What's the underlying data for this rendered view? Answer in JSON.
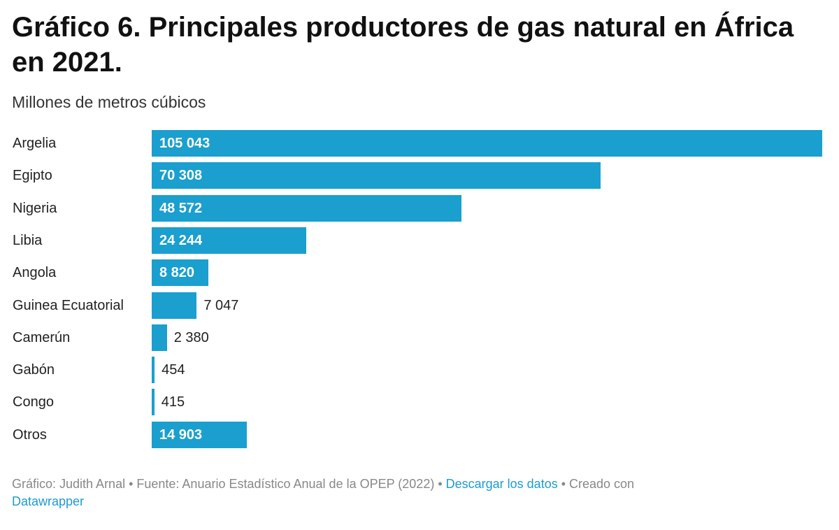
{
  "chart_data": {
    "type": "bar",
    "orientation": "horizontal",
    "title": "Gráfico 6. Principales productores de gas natural en África en 2021.",
    "subtitle": "Millones de metros cúbicos",
    "categories": [
      "Argelia",
      "Egipto",
      "Nigeria",
      "Libia",
      "Angola",
      "Guinea Ecuatorial",
      "Camerún",
      "Gabón",
      "Congo",
      "Otros"
    ],
    "values": [
      105043,
      70308,
      48572,
      24244,
      8820,
      7047,
      2380,
      454,
      415,
      14903
    ],
    "value_labels": [
      "105 043",
      "70 308",
      "48 572",
      "24 244",
      "8 820",
      "7 047",
      "2 380",
      "454",
      "415",
      "14 903"
    ],
    "xlim": [
      0,
      105043
    ],
    "grid": false,
    "color": "#1a9fcf"
  },
  "footer": {
    "credit": "Gráfico: Judith Arnal • Fuente: Anuario Estadístico Anual de la OPEP (2022) • ",
    "download_link": "Descargar los datos",
    "created": " • Creado con ",
    "datawrapper_link": "Datawrapper"
  }
}
